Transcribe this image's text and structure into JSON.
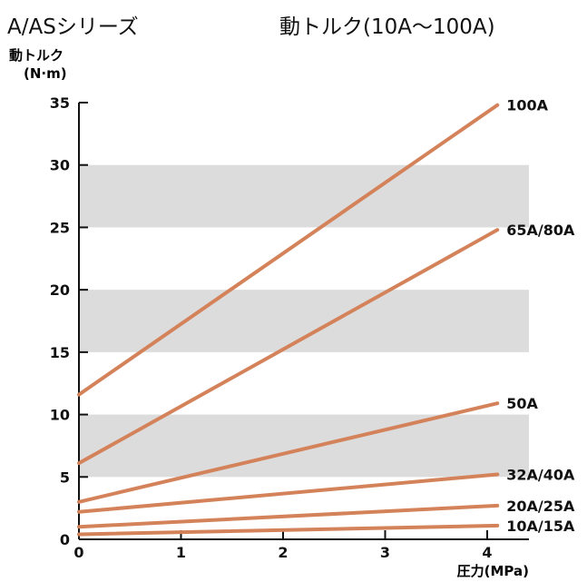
{
  "header": {
    "series_title": "A/ASシリーズ",
    "chart_title": "動トルク(10A〜100A)"
  },
  "chart_data": {
    "type": "line",
    "title": "動トルク(10A〜100A)",
    "ylabel": "動トルク",
    "yunit": "(N·m)",
    "xlabel": "圧力(MPa)",
    "xlim": [
      0,
      4.4
    ],
    "ylim": [
      0,
      35
    ],
    "xticks": [
      0,
      1,
      2,
      3,
      4
    ],
    "yticks": [
      0,
      5,
      10,
      15,
      20,
      25,
      30,
      35
    ],
    "bands": [
      [
        5,
        10
      ],
      [
        15,
        20
      ],
      [
        25,
        30
      ]
    ],
    "line_color": "#d4825a",
    "band_color": "#dcdcdc",
    "series": [
      {
        "name": "100A",
        "x": [
          0,
          4.1
        ],
        "values": [
          11.6,
          34.8
        ]
      },
      {
        "name": "65A/80A",
        "x": [
          0,
          4.1
        ],
        "values": [
          6.1,
          24.8
        ]
      },
      {
        "name": "50A",
        "x": [
          0,
          4.1
        ],
        "values": [
          3.0,
          10.9
        ]
      },
      {
        "name": "32A/40A",
        "x": [
          0,
          4.1
        ],
        "values": [
          2.2,
          5.2
        ]
      },
      {
        "name": "20A/25A",
        "x": [
          0,
          4.1
        ],
        "values": [
          1.0,
          2.7
        ]
      },
      {
        "name": "10A/15A",
        "x": [
          0,
          4.1
        ],
        "values": [
          0.4,
          1.1
        ]
      }
    ]
  }
}
